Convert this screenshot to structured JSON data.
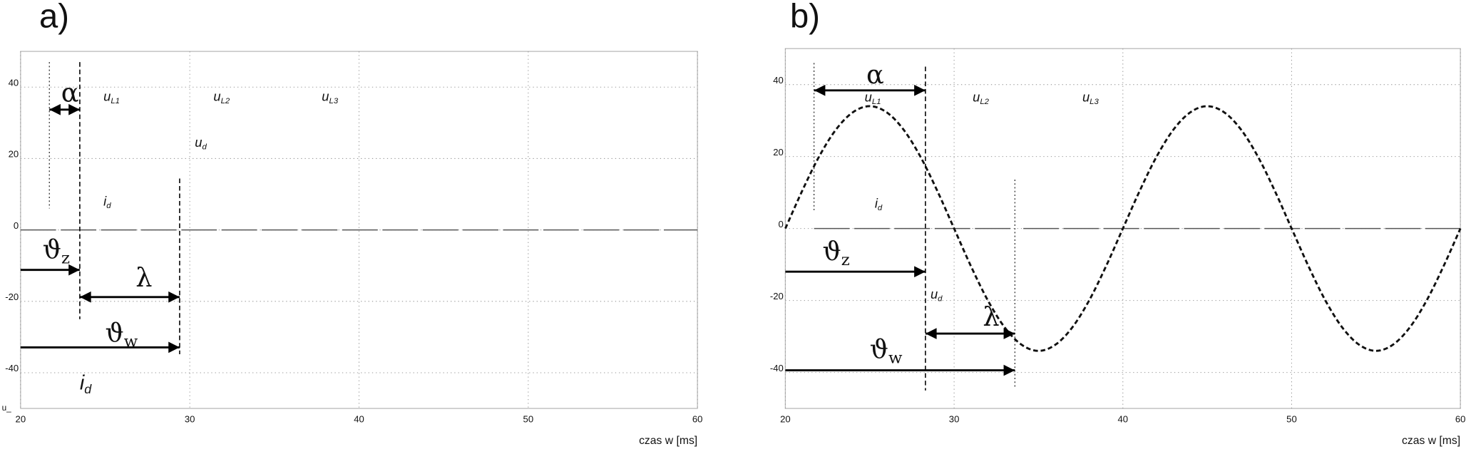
{
  "chart_data": [
    {
      "type": "line",
      "panel_label": "a)",
      "xlabel": "czas w [ms]",
      "ylabel": "u_",
      "xlim": [
        20,
        60
      ],
      "ylim": [
        -50,
        50
      ],
      "xticks": [
        20,
        30,
        40,
        50,
        60
      ],
      "yticks": [
        40,
        20,
        0,
        -20,
        -40
      ],
      "grid": true,
      "series": [
        {
          "x": [
            20,
            60
          ],
          "values": [
            0,
            0
          ],
          "color": "#555555",
          "line_style": "long-dashed"
        }
      ],
      "markers": [
        {
          "x": 21.7,
          "y": [
            47,
            6
          ],
          "line_style": "dotted"
        },
        {
          "x": 23.5,
          "y": [
            47,
            -25
          ],
          "line_style": "dashed"
        },
        {
          "x": 29.4,
          "y": [
            14.4,
            -34.8
          ],
          "line_style": "dashed"
        }
      ],
      "arrows": [
        {
          "x": [
            21.7,
            23.5
          ],
          "y": 33.7,
          "heads": "both"
        },
        {
          "x": [
            20,
            23.5
          ],
          "y": -11.2,
          "heads": "end"
        },
        {
          "x": [
            23.5,
            29.4
          ],
          "y": -18.8,
          "heads": "both"
        },
        {
          "x": [
            20,
            29.4
          ],
          "y": -32.9,
          "heads": "end"
        }
      ],
      "annotations": [
        {
          "text": "α",
          "x": 22.4,
          "y": 37.9,
          "font": "greek"
        },
        {
          "text": "u",
          "sub": "L1",
          "x": 24.9,
          "y": 37.1,
          "font": "italic"
        },
        {
          "text": "u",
          "sub": "L2",
          "x": 31.4,
          "y": 37.1,
          "font": "italic"
        },
        {
          "text": "u",
          "sub": "L3",
          "x": 37.8,
          "y": 37.1,
          "font": "italic"
        },
        {
          "text": "u",
          "sub": "d",
          "x": 30.3,
          "y": 24.3,
          "font": "italic"
        },
        {
          "text": "i",
          "sub": "d",
          "x": 24.9,
          "y": 7.8,
          "font": "italic"
        },
        {
          "text": "ϑ",
          "sub": "z",
          "x": 21.3,
          "y": -6,
          "font": "greek"
        },
        {
          "text": "λ",
          "x": 26.8,
          "y": -13.9,
          "font": "greek"
        },
        {
          "text": "ϑ",
          "sub": "w",
          "x": 25,
          "y": -29.3,
          "font": "greek"
        },
        {
          "text": "i",
          "sub": "d",
          "x": 23.5,
          "y": -43.1,
          "font": "italic-large"
        }
      ]
    },
    {
      "type": "line",
      "panel_label": "b)",
      "xlabel": "czas w [ms]",
      "xlim": [
        20,
        60
      ],
      "ylim": [
        -50,
        50
      ],
      "xticks": [
        20,
        30,
        40,
        50,
        60
      ],
      "yticks": [
        40,
        20,
        0,
        -20,
        -40
      ],
      "grid": true,
      "series": [
        {
          "x": [
            21.7,
            33.4,
            33.8,
            34.1,
            60
          ],
          "values": [
            0,
            0,
            null,
            0,
            0
          ],
          "color": "#555555",
          "line_style": "long-dashed"
        },
        {
          "x": [
            20,
            21,
            22,
            23,
            24,
            25,
            26,
            27,
            28,
            29,
            30,
            31,
            32,
            33,
            34,
            35,
            36,
            37,
            38,
            39,
            40,
            41,
            42,
            43,
            44,
            45,
            46,
            47,
            48,
            49,
            50,
            51,
            52,
            53,
            54,
            55,
            56,
            57,
            58,
            59,
            60
          ],
          "values": [
            0,
            10.5,
            20,
            27.5,
            32.3,
            34,
            32.3,
            27.5,
            20,
            10.5,
            0,
            -10.5,
            -20,
            -27.5,
            -32.3,
            -34,
            -32.3,
            -27.5,
            -20,
            -10.5,
            0,
            10.5,
            20,
            27.5,
            32.3,
            34,
            32.3,
            27.5,
            20,
            10.5,
            0,
            -10.5,
            -20,
            -27.5,
            -32.3,
            -34,
            -32.3,
            -27.5,
            -20,
            -10.5,
            0
          ],
          "color": "#111111",
          "line_style": "dashed"
        }
      ],
      "markers": [
        {
          "x": 21.7,
          "y": [
            46,
            5
          ],
          "line_style": "dotted"
        },
        {
          "x": 28.3,
          "y": [
            45,
            -45
          ],
          "line_style": "dashed"
        },
        {
          "x": 33.6,
          "y": [
            13.6,
            -44
          ],
          "line_style": "dotted"
        }
      ],
      "arrows": [
        {
          "x": [
            21.7,
            28.3
          ],
          "y": 38.4,
          "heads": "both"
        },
        {
          "x": [
            20,
            28.3
          ],
          "y": -12,
          "heads": "end"
        },
        {
          "x": [
            28.3,
            33.6
          ],
          "y": -29.2,
          "heads": "both"
        },
        {
          "x": [
            20,
            33.6
          ],
          "y": -39.4,
          "heads": "end"
        }
      ],
      "annotations": [
        {
          "text": "α",
          "x": 24.8,
          "y": 42.3,
          "font": "greek"
        },
        {
          "text": "u",
          "sub": "L1",
          "x": 24.7,
          "y": 36.3,
          "font": "italic"
        },
        {
          "text": "u",
          "sub": "L2",
          "x": 31.1,
          "y": 36.3,
          "font": "italic"
        },
        {
          "text": "u",
          "sub": "L3",
          "x": 37.6,
          "y": 36.3,
          "font": "italic"
        },
        {
          "text": "i",
          "sub": "d",
          "x": 25.3,
          "y": 6.8,
          "font": "italic"
        },
        {
          "text": "ϑ",
          "sub": "z",
          "x": 22.2,
          "y": -6.8,
          "font": "greek"
        },
        {
          "text": "u",
          "sub": "d",
          "x": 28.6,
          "y": -18.5,
          "font": "italic"
        },
        {
          "text": "λ",
          "x": 31.7,
          "y": -25,
          "font": "greek"
        },
        {
          "text": "ϑ",
          "sub": "w",
          "x": 25,
          "y": -34,
          "font": "greek"
        }
      ]
    }
  ]
}
